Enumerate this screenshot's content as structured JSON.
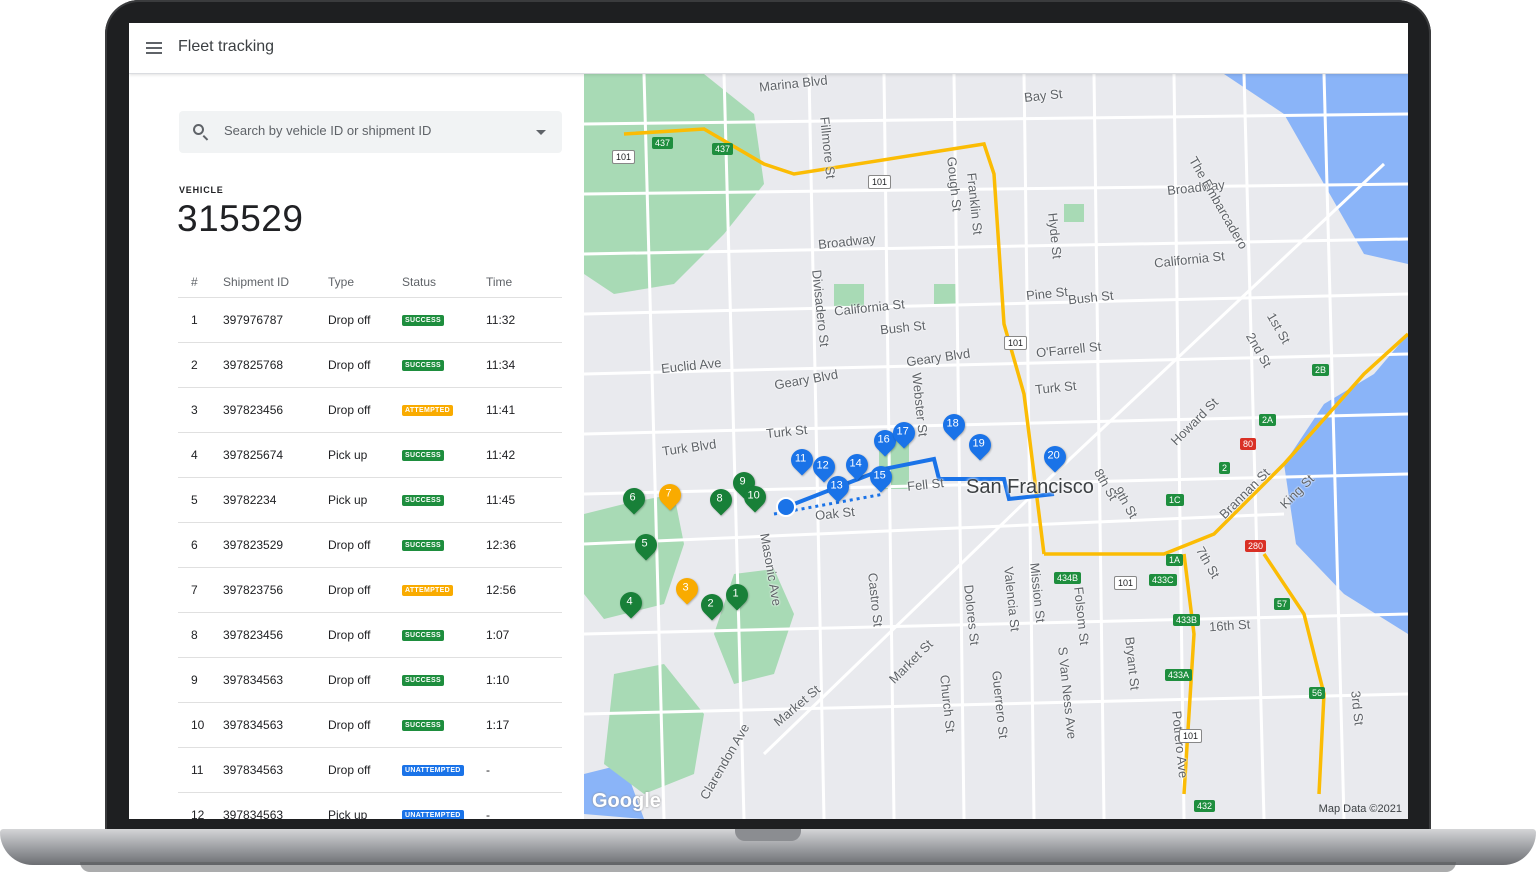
{
  "app": {
    "title": "Fleet tracking"
  },
  "search": {
    "placeholder": "Search by vehicle ID or shipment ID"
  },
  "vehicle": {
    "label": "VEHICLE",
    "id": "315529"
  },
  "table": {
    "headers": [
      "#",
      "Shipment ID",
      "Type",
      "Status",
      "Time"
    ],
    "rows": [
      {
        "num": "1",
        "id": "397976787",
        "type": "Drop off",
        "status": "SUCCESS",
        "time": "11:32"
      },
      {
        "num": "2",
        "id": "397825768",
        "type": "Drop off",
        "status": "SUCCESS",
        "time": "11:34"
      },
      {
        "num": "3",
        "id": "397823456",
        "type": "Drop off",
        "status": "ATTEMPTED",
        "time": "11:41"
      },
      {
        "num": "4",
        "id": "397825674",
        "type": "Pick up",
        "status": "SUCCESS",
        "time": "11:42"
      },
      {
        "num": "5",
        "id": "39782234",
        "type": "Pick up",
        "status": "SUCCESS",
        "time": "11:45"
      },
      {
        "num": "6",
        "id": "397823529",
        "type": "Drop off",
        "status": "SUCCESS",
        "time": "12:36"
      },
      {
        "num": "7",
        "id": "397823756",
        "type": "Drop off",
        "status": "ATTEMPTED",
        "time": "12:56"
      },
      {
        "num": "8",
        "id": "397823456",
        "type": "Drop off",
        "status": "SUCCESS",
        "time": "1:07"
      },
      {
        "num": "9",
        "id": "397834563",
        "type": "Drop off",
        "status": "SUCCESS",
        "time": "1:10"
      },
      {
        "num": "10",
        "id": "397834563",
        "type": "Drop off",
        "status": "SUCCESS",
        "time": "1:17"
      },
      {
        "num": "11",
        "id": "397834563",
        "type": "Drop off",
        "status": "UNATTEMPTED",
        "time": "-"
      },
      {
        "num": "12",
        "id": "397834563",
        "type": "Pick up",
        "status": "UNATTEMPTED",
        "time": "-"
      }
    ]
  },
  "map": {
    "city": "San Francisco",
    "google": "Google",
    "attribution": "Map Data ©2021",
    "streets": [
      "Marina Blvd",
      "Bay St",
      "Fillmore St",
      "Gough St",
      "Franklin St",
      "Broadway",
      "Hyde St",
      "California St",
      "Divisadero St",
      "Pine St",
      "Bush St",
      "Euclid Ave",
      "Geary Blvd",
      "O'Farrell St",
      "Turk Blvd",
      "Turk St",
      "Webster St",
      "Fell St",
      "Oak St",
      "Masonic Ave",
      "Castro St",
      "Market St",
      "Dolores St",
      "Valencia St",
      "Mission St",
      "Folsom St",
      "S Van Ness Ave",
      "Bryant St",
      "16th St",
      "Potrero Ave",
      "3rd St",
      "Guerrero St",
      "Clarendon Ave",
      "Church St",
      "Howard St",
      "The Embarcadero",
      "1st St",
      "2nd St",
      "Brannan St",
      "King St",
      "8th St",
      "9th St",
      "7th St"
    ],
    "highways": [
      "437",
      "101",
      "80",
      "280",
      "1A",
      "1C",
      "2",
      "2A",
      "2B",
      "434B",
      "433C",
      "433B",
      "433A",
      "57",
      "56",
      "432"
    ],
    "markers": {
      "green": [
        "1",
        "2",
        "4",
        "5",
        "6",
        "8",
        "9",
        "10"
      ],
      "yellow": [
        "3",
        "7"
      ],
      "blue": [
        "11",
        "12",
        "13",
        "14",
        "15",
        "16",
        "17",
        "18",
        "19",
        "20"
      ]
    },
    "colors": {
      "park": "#a8dab5",
      "highway": "#fbbc04",
      "route": "#1a73e8",
      "water": "#8ab4f8"
    }
  }
}
